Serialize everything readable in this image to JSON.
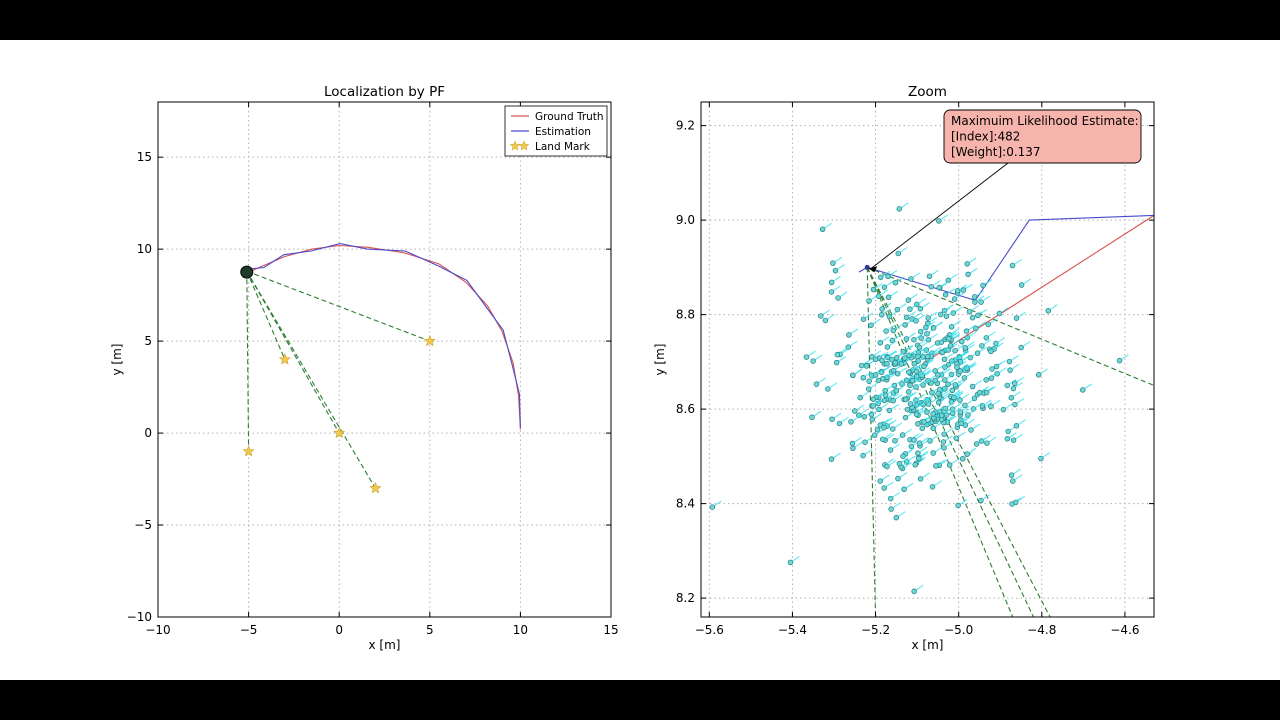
{
  "chart_data": [
    {
      "type": "line",
      "title": "Localization by PF",
      "xlabel": "x [m]",
      "ylabel": "y [m]",
      "xlim": [
        -10,
        15
      ],
      "ylim": [
        -10,
        18
      ],
      "xticks": [
        -10,
        -5,
        0,
        5,
        10,
        15
      ],
      "xtick_labels": [
        "−10",
        "−5",
        "0",
        "5",
        "10",
        "15"
      ],
      "yticks": [
        -10,
        -5,
        0,
        5,
        10,
        15
      ],
      "ytick_labels": [
        "−10",
        "−5",
        "0",
        "5",
        "10",
        "15"
      ],
      "grid": true,
      "legend_position": "top-right",
      "legend": [
        {
          "label": "Ground Truth",
          "color": "#d9534f",
          "marker": "line"
        },
        {
          "label": "Estimation",
          "color": "#4a4ad0",
          "marker": "line"
        },
        {
          "label": "Land Mark",
          "color": "#f2c94c",
          "marker": "star"
        }
      ],
      "series": [
        {
          "name": "Ground Truth",
          "color": "#d9534f",
          "x": [
            10.0,
            9.9,
            9.6,
            9.0,
            8.2,
            7.0,
            5.5,
            3.6,
            1.6,
            0.0,
            -1.5,
            -3.0,
            -4.2,
            -5.1
          ],
          "y": [
            0.2,
            2.0,
            3.8,
            5.5,
            6.9,
            8.2,
            9.2,
            9.8,
            10.1,
            10.2,
            10.0,
            9.6,
            9.1,
            8.7
          ]
        },
        {
          "name": "Estimation",
          "color": "#4a4ad0",
          "x": [
            10.0,
            9.95,
            9.55,
            9.05,
            8.15,
            7.05,
            5.45,
            3.65,
            1.55,
            0.05,
            -1.55,
            -3.05,
            -4.15,
            -5.15
          ],
          "y": [
            0.3,
            2.1,
            3.7,
            5.6,
            6.8,
            8.3,
            9.1,
            9.9,
            10.0,
            10.3,
            9.9,
            9.7,
            9.0,
            8.9
          ]
        },
        {
          "name": "Land Mark",
          "color": "#f2c94c",
          "type": "scatter",
          "x": [
            5,
            -3,
            0,
            -5,
            2
          ],
          "y": [
            5,
            4,
            0,
            -1,
            -3
          ]
        }
      ],
      "observation_lines": {
        "color": "#2e7d32",
        "from": [
          -5.1,
          8.8
        ],
        "to": [
          [
            5,
            5
          ],
          [
            -3,
            4
          ],
          [
            0,
            0
          ],
          [
            -5,
            -1
          ],
          [
            2,
            -3
          ]
        ]
      }
    },
    {
      "type": "scatter",
      "title": "Zoom",
      "xlabel": "x [m]",
      "ylabel": "y [m]",
      "xlim": [
        -5.62,
        -4.53
      ],
      "ylim": [
        8.16,
        9.25
      ],
      "xticks": [
        -5.6,
        -5.4,
        -5.2,
        -5.0,
        -4.8,
        -4.6
      ],
      "xtick_labels": [
        "−5.6",
        "−5.4",
        "−5.2",
        "−5.0",
        "−4.8",
        "−4.6"
      ],
      "yticks": [
        8.2,
        8.4,
        8.6,
        8.8,
        9.0,
        9.2
      ],
      "ytick_labels": [
        "8.2",
        "8.4",
        "8.6",
        "8.8",
        "9.0",
        "9.2"
      ],
      "grid": true,
      "series": [
        {
          "name": "Ground Truth",
          "color": "#d9534f",
          "x": [
            -5.08,
            -4.53
          ],
          "y": [
            8.7,
            9.01
          ]
        },
        {
          "name": "Estimation",
          "color": "#4a4ad0",
          "x": [
            -5.24,
            -5.22,
            -4.96,
            -4.83,
            -4.53
          ],
          "y": [
            8.89,
            8.9,
            8.83,
            9.0,
            9.01
          ]
        },
        {
          "name": "Particles",
          "color": "#5fd3d3",
          "center": [
            -5.08,
            8.66
          ],
          "spread": [
            0.12,
            0.11
          ],
          "count": 420
        }
      ],
      "observation_lines": {
        "color": "#2e7d32",
        "from": [
          -5.22,
          8.9
        ],
        "to": [
          [
            -5.2,
            8.16
          ],
          [
            -4.87,
            8.16
          ],
          [
            -4.82,
            8.16
          ],
          [
            -4.78,
            8.16
          ],
          [
            -4.53,
            8.65
          ]
        ]
      },
      "annotation": {
        "lines": [
          "Maximuim Likelihood Estimate:",
          "[Index]:482",
          "[Weight]:0.137"
        ],
        "box_color": "#f7b4ad",
        "arrow_target": [
          -5.22,
          8.9
        ],
        "box_anchor": [
          -4.99,
          9.13
        ]
      }
    }
  ]
}
